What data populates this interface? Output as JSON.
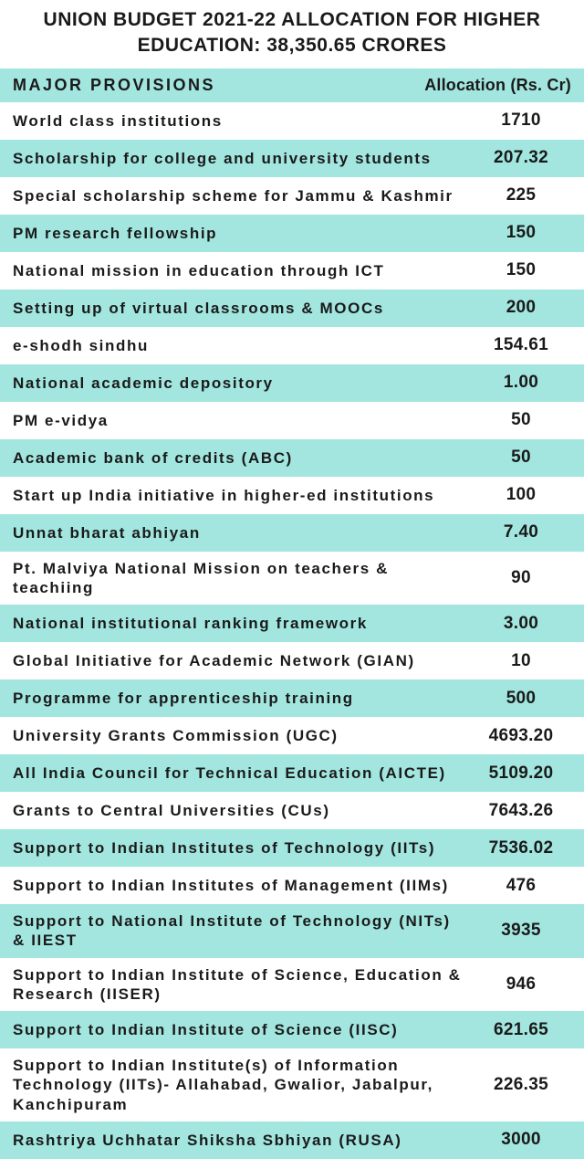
{
  "title": "UNION BUDGET 2021-22 ALLOCATION FOR HIGHER EDUCATION: 38,350.65 CRORES",
  "title_fontsize": 21,
  "headers": {
    "provisions": "MAJOR PROVISIONS",
    "allocation": "Allocation (Rs. Cr)"
  },
  "header_fontsize": 18,
  "colors": {
    "row_alt": "#a2e6df",
    "row_default": "#ffffff",
    "header_bg": "#a2e6df",
    "text": "#1a1a1a"
  },
  "provision_fontsize": 17,
  "allocation_fontsize": 19,
  "rows": [
    {
      "provision": "World class institutions",
      "allocation": "1710"
    },
    {
      "provision": "Scholarship for college and university students",
      "allocation": "207.32"
    },
    {
      "provision": "Special scholarship scheme for Jammu & Kashmir",
      "allocation": "225"
    },
    {
      "provision": "PM research fellowship",
      "allocation": "150"
    },
    {
      "provision": "National mission in education through ICT",
      "allocation": "150"
    },
    {
      "provision": "Setting up of virtual classrooms & MOOCs",
      "allocation": "200"
    },
    {
      "provision": "e-shodh sindhu",
      "allocation": "154.61"
    },
    {
      "provision": "National academic depository",
      "allocation": "1.00"
    },
    {
      "provision": "PM e-vidya",
      "allocation": "50"
    },
    {
      "provision": "Academic bank of credits (ABC)",
      "allocation": "50"
    },
    {
      "provision": "Start up India initiative in higher-ed institutions",
      "allocation": "100"
    },
    {
      "provision": "Unnat bharat abhiyan",
      "allocation": "7.40"
    },
    {
      "provision": "Pt. Malviya National Mission on teachers & teachiing",
      "allocation": "90"
    },
    {
      "provision": "National institutional ranking framework",
      "allocation": "3.00"
    },
    {
      "provision": "Global Initiative for Academic Network (GIAN)",
      "allocation": "10"
    },
    {
      "provision": "Programme for apprenticeship training",
      "allocation": "500"
    },
    {
      "provision": "University Grants Commission (UGC)",
      "allocation": "4693.20"
    },
    {
      "provision": "All India Council for Technical Education (AICTE)",
      "allocation": "5109.20"
    },
    {
      "provision": "Grants to Central Universities (CUs)",
      "allocation": "7643.26"
    },
    {
      "provision": "Support to Indian Institutes of Technology (IITs)",
      "allocation": "7536.02"
    },
    {
      "provision": "Support to Indian Institutes of Management (IIMs)",
      "allocation": "476"
    },
    {
      "provision": "Support to National Institute of Technology (NITs) & IIEST",
      "allocation": "3935"
    },
    {
      "provision": "Support to Indian Institute of Science, Education & Research (IISER)",
      "allocation": "946"
    },
    {
      "provision": "Support to Indian Institute of Science (IISC)",
      "allocation": "621.65"
    },
    {
      "provision": "Support to Indian Institute(s) of Information Technology (IITs)- Allahabad, Gwalior, Jabalpur, Kanchipuram",
      "allocation": "226.35"
    },
    {
      "provision": "Rashtriya Uchhatar Shiksha Sbhiyan (RUSA)",
      "allocation": "3000"
    }
  ],
  "row_backgrounds": [
    "#ffffff",
    "#a2e6df",
    "#ffffff",
    "#a2e6df",
    "#ffffff",
    "#a2e6df",
    "#ffffff",
    "#a2e6df",
    "#ffffff",
    "#a2e6df",
    "#ffffff",
    "#a2e6df",
    "#ffffff",
    "#a2e6df",
    "#ffffff",
    "#a2e6df",
    "#ffffff",
    "#a2e6df",
    "#ffffff",
    "#a2e6df",
    "#ffffff",
    "#a2e6df",
    "#ffffff",
    "#a2e6df",
    "#ffffff",
    "#a2e6df"
  ]
}
